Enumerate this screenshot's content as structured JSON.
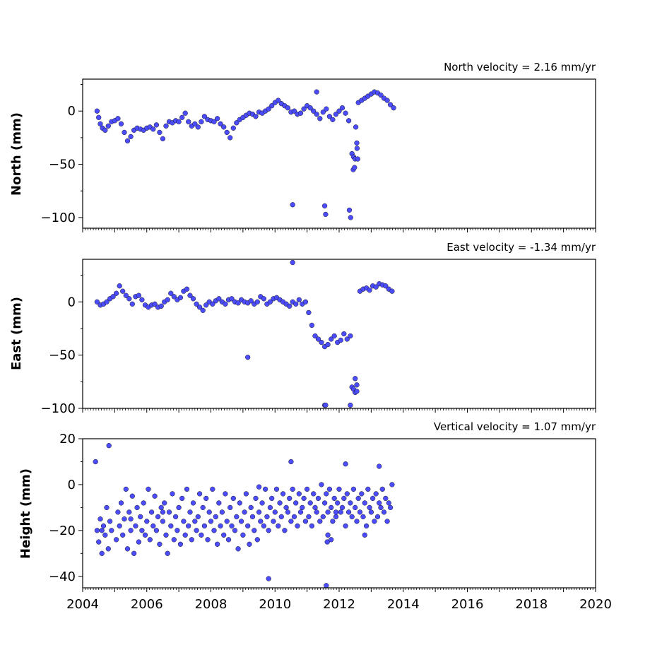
{
  "chart_data": [
    {
      "type": "scatter",
      "title": "North velocity = 2.16 mm/yr",
      "ylabel": "North (mm)",
      "xlim": [
        2004,
        2020
      ],
      "ylim": [
        -110,
        30
      ],
      "yticks": [
        -100,
        -50,
        0
      ],
      "yticklabels": [
        "−100",
        "−50",
        "0"
      ],
      "marker_color": "#4b4bff",
      "marker_edge": "#1a1a1a",
      "grid": false,
      "x": [
        2004.45,
        2004.5,
        2004.55,
        2004.62,
        2004.7,
        2004.8,
        2004.9,
        2005.0,
        2005.1,
        2005.2,
        2005.3,
        2005.4,
        2005.5,
        2005.6,
        2005.7,
        2005.8,
        2005.9,
        2006.0,
        2006.1,
        2006.2,
        2006.3,
        2006.4,
        2006.5,
        2006.6,
        2006.7,
        2006.8,
        2006.9,
        2007.0,
        2007.1,
        2007.2,
        2007.3,
        2007.4,
        2007.5,
        2007.6,
        2007.7,
        2007.8,
        2007.9,
        2008.0,
        2008.1,
        2008.2,
        2008.3,
        2008.4,
        2008.5,
        2008.6,
        2008.7,
        2008.8,
        2008.9,
        2009.0,
        2009.1,
        2009.2,
        2009.3,
        2009.4,
        2009.5,
        2009.6,
        2009.7,
        2009.8,
        2009.9,
        2010.0,
        2010.1,
        2010.2,
        2010.3,
        2010.4,
        2010.5,
        2010.6,
        2010.7,
        2010.8,
        2010.9,
        2011.0,
        2011.1,
        2011.2,
        2011.3,
        2011.4,
        2011.5,
        2011.6,
        2011.7,
        2011.8,
        2011.9,
        2012.0,
        2012.1,
        2012.2,
        2012.3,
        2012.4,
        2012.45,
        2012.5,
        2012.55,
        2012.6,
        2012.7,
        2012.8,
        2012.9,
        2013.0,
        2013.1,
        2013.2,
        2013.3,
        2013.4,
        2013.5,
        2013.6,
        2013.7,
        2010.55,
        2011.55,
        2011.58,
        2012.32,
        2012.36,
        2012.44,
        2012.48,
        2012.52,
        2012.56,
        2011.3,
        2012.58
      ],
      "y": [
        0,
        -6,
        -12,
        -16,
        -18,
        -14,
        -10,
        -9,
        -7,
        -12,
        -20,
        -28,
        -24,
        -18,
        -16,
        -17,
        -18,
        -16,
        -15,
        -17,
        -13,
        -20,
        -26,
        -14,
        -10,
        -11,
        -9,
        -10,
        -6,
        -2,
        -10,
        -14,
        -12,
        -15,
        -10,
        -5,
        -8,
        -9,
        -10,
        -7,
        -12,
        -15,
        -20,
        -25,
        -16,
        -11,
        -8,
        -6,
        -4,
        -2,
        -3,
        -5,
        -1,
        -2,
        0,
        2,
        5,
        8,
        10,
        7,
        5,
        3,
        -1,
        0,
        -3,
        -2,
        2,
        5,
        3,
        0,
        -3,
        -7,
        -1,
        2,
        -5,
        -8,
        -3,
        0,
        3,
        -2,
        -9,
        -40,
        -43,
        -45,
        -30,
        8,
        10,
        12,
        14,
        16,
        18,
        17,
        15,
        12,
        10,
        6,
        3,
        -88,
        -89,
        -97,
        -93,
        -100,
        -55,
        -53,
        -15,
        -35,
        18,
        -45
      ]
    },
    {
      "type": "scatter",
      "title": "East velocity = -1.34 mm/yr",
      "ylabel": "East (mm)",
      "xlim": [
        2004,
        2020
      ],
      "ylim": [
        -100,
        40
      ],
      "yticks": [
        -100,
        -50,
        0
      ],
      "yticklabels": [
        "−100",
        "−50",
        "0"
      ],
      "marker_color": "#4b4bff",
      "marker_edge": "#1a1a1a",
      "grid": false,
      "x": [
        2004.45,
        2004.55,
        2004.65,
        2004.75,
        2004.85,
        2004.95,
        2005.05,
        2005.15,
        2005.25,
        2005.35,
        2005.45,
        2005.55,
        2005.65,
        2005.75,
        2005.85,
        2005.95,
        2006.05,
        2006.15,
        2006.25,
        2006.35,
        2006.45,
        2006.55,
        2006.65,
        2006.75,
        2006.85,
        2006.95,
        2007.05,
        2007.15,
        2007.25,
        2007.35,
        2007.45,
        2007.55,
        2007.65,
        2007.75,
        2007.85,
        2007.95,
        2008.05,
        2008.15,
        2008.25,
        2008.35,
        2008.45,
        2008.55,
        2008.65,
        2008.75,
        2008.85,
        2008.95,
        2009.05,
        2009.15,
        2009.25,
        2009.35,
        2009.45,
        2009.55,
        2009.65,
        2009.75,
        2009.85,
        2009.95,
        2010.05,
        2010.15,
        2010.25,
        2010.35,
        2010.45,
        2010.55,
        2010.65,
        2010.75,
        2010.85,
        2010.95,
        2011.05,
        2011.15,
        2011.25,
        2011.35,
        2011.45,
        2011.55,
        2011.65,
        2011.75,
        2011.85,
        2011.95,
        2012.05,
        2012.15,
        2012.25,
        2012.35,
        2012.4,
        2012.45,
        2012.5,
        2012.55,
        2012.65,
        2012.75,
        2012.85,
        2012.95,
        2013.05,
        2013.15,
        2013.25,
        2013.35,
        2013.45,
        2013.55,
        2013.65,
        2010.55,
        2009.15,
        2011.55,
        2011.58,
        2012.35,
        2012.5,
        2012.55
      ],
      "y": [
        0,
        -3,
        -2,
        0,
        3,
        5,
        8,
        15,
        10,
        6,
        3,
        -2,
        5,
        6,
        2,
        -3,
        -5,
        -3,
        -2,
        -5,
        -4,
        0,
        2,
        8,
        5,
        2,
        4,
        10,
        12,
        6,
        3,
        -2,
        -5,
        -8,
        -3,
        0,
        -2,
        1,
        3,
        0,
        -2,
        2,
        3,
        0,
        -1,
        2,
        0,
        -1,
        1,
        -2,
        0,
        5,
        3,
        -2,
        0,
        3,
        4,
        2,
        0,
        -2,
        -4,
        0,
        -2,
        2,
        -2,
        0,
        -10,
        -22,
        -32,
        -35,
        -38,
        -42,
        -40,
        -35,
        -32,
        -38,
        -36,
        -30,
        -35,
        -32,
        -80,
        -82,
        -85,
        -78,
        10,
        12,
        13,
        11,
        15,
        14,
        17,
        16,
        15,
        12,
        10,
        37,
        -52,
        -97,
        -97,
        -97,
        -72,
        -84
      ]
    },
    {
      "type": "scatter",
      "title": "Vertical velocity = 1.07 mm/yr",
      "ylabel": "Height (mm)",
      "xlim": [
        2004,
        2020
      ],
      "ylim": [
        -45,
        20
      ],
      "yticks": [
        -40,
        -20,
        0,
        20
      ],
      "yticklabels": [
        "−40",
        "−20",
        "0",
        "20"
      ],
      "marker_color": "#4b4bff",
      "marker_edge": "#1a1a1a",
      "grid": false,
      "x": [
        2004.45,
        2004.5,
        2004.55,
        2004.6,
        2004.65,
        2004.7,
        2004.75,
        2004.8,
        2004.85,
        2004.9,
        2005.05,
        2005.1,
        2005.15,
        2005.2,
        2005.25,
        2005.3,
        2005.35,
        2005.4,
        2005.45,
        2005.5,
        2005.55,
        2005.6,
        2005.65,
        2005.7,
        2005.75,
        2005.8,
        2005.85,
        2005.9,
        2005.95,
        2006.0,
        2006.05,
        2006.1,
        2006.15,
        2006.2,
        2006.25,
        2006.3,
        2006.35,
        2006.4,
        2006.45,
        2006.5,
        2006.55,
        2006.6,
        2006.65,
        2006.7,
        2006.75,
        2006.8,
        2006.85,
        2006.9,
        2006.95,
        2007.0,
        2007.05,
        2007.1,
        2007.15,
        2007.2,
        2007.25,
        2007.3,
        2007.35,
        2007.4,
        2007.45,
        2007.5,
        2007.55,
        2007.6,
        2007.65,
        2007.7,
        2007.75,
        2007.8,
        2007.85,
        2007.9,
        2007.95,
        2008.0,
        2008.05,
        2008.1,
        2008.15,
        2008.2,
        2008.25,
        2008.3,
        2008.35,
        2008.4,
        2008.45,
        2008.5,
        2008.55,
        2008.6,
        2008.65,
        2008.7,
        2008.75,
        2008.8,
        2008.85,
        2008.9,
        2008.95,
        2009.0,
        2009.05,
        2009.1,
        2009.15,
        2009.2,
        2009.25,
        2009.3,
        2009.35,
        2009.4,
        2009.45,
        2009.5,
        2009.55,
        2009.6,
        2009.65,
        2009.7,
        2009.75,
        2009.8,
        2009.85,
        2009.9,
        2009.95,
        2010.0,
        2010.05,
        2010.1,
        2010.15,
        2010.2,
        2010.25,
        2010.3,
        2010.35,
        2010.4,
        2010.45,
        2010.5,
        2010.55,
        2010.6,
        2010.65,
        2010.7,
        2010.75,
        2010.8,
        2010.85,
        2010.9,
        2010.95,
        2011.0,
        2011.05,
        2011.1,
        2011.15,
        2011.2,
        2011.25,
        2011.3,
        2011.35,
        2011.4,
        2011.45,
        2011.5,
        2011.55,
        2011.6,
        2011.65,
        2011.7,
        2011.75,
        2011.8,
        2011.85,
        2011.9,
        2011.95,
        2012.0,
        2012.05,
        2012.1,
        2012.15,
        2012.2,
        2012.25,
        2012.3,
        2012.35,
        2012.4,
        2012.45,
        2012.5,
        2012.55,
        2012.6,
        2012.65,
        2012.7,
        2012.75,
        2012.8,
        2012.85,
        2012.9,
        2012.95,
        2013.0,
        2013.05,
        2013.1,
        2013.15,
        2013.2,
        2013.25,
        2013.3,
        2013.35,
        2013.4,
        2013.45,
        2013.5,
        2013.55,
        2013.6,
        2013.65,
        2004.4,
        2004.82,
        2009.8,
        2011.6,
        2011.63,
        2011.65,
        2011.75,
        2011.9,
        2012.2,
        2013.25,
        2009.5,
        2010.5,
        2004.6,
        2005.5,
        2006.5,
        2012.8
      ],
      "y": [
        -20,
        -25,
        -15,
        -30,
        -18,
        -22,
        -10,
        -28,
        -16,
        -20,
        -24,
        -12,
        -18,
        -8,
        -22,
        -15,
        -2,
        -28,
        -12,
        -20,
        -5,
        -30,
        -18,
        -10,
        -25,
        -14,
        -20,
        -8,
        -22,
        -16,
        -2,
        -24,
        -12,
        -18,
        -5,
        -20,
        -14,
        -26,
        -10,
        -16,
        -8,
        -22,
        -30,
        -12,
        -18,
        -4,
        -24,
        -14,
        -20,
        -10,
        -26,
        -6,
        -16,
        -22,
        -2,
        -18,
        -12,
        -24,
        -8,
        -16,
        -20,
        -14,
        -4,
        -22,
        -10,
        -18,
        -6,
        -24,
        -12,
        -16,
        -2,
        -20,
        -14,
        -26,
        -8,
        -18,
        -12,
        -22,
        -4,
        -16,
        -24,
        -10,
        -18,
        -6,
        -20,
        -14,
        -28,
        -8,
        -16,
        -22,
        -12,
        -4,
        -18,
        -26,
        -10,
        -14,
        -20,
        -6,
        -24,
        -12,
        -16,
        -8,
        -18,
        -2,
        -14,
        -20,
        -10,
        -6,
        -16,
        -12,
        -2,
        -18,
        -8,
        -14,
        -4,
        -20,
        -10,
        -12,
        -6,
        -16,
        -2,
        -14,
        -8,
        -18,
        -4,
        -12,
        -10,
        -6,
        -16,
        -2,
        -14,
        -8,
        -18,
        -4,
        -10,
        -12,
        -6,
        -16,
        0,
        -14,
        -8,
        -4,
        -12,
        -2,
        -10,
        -16,
        -6,
        -14,
        -8,
        -2,
        -12,
        -10,
        -6,
        -18,
        -4,
        -12,
        -8,
        -14,
        -2,
        -10,
        -16,
        -6,
        -12,
        -4,
        -14,
        -8,
        -18,
        -2,
        -10,
        -12,
        -6,
        -16,
        -4,
        -14,
        -8,
        -10,
        -2,
        -12,
        -6,
        -16,
        -8,
        -10,
        0,
        10,
        17,
        -41,
        -44,
        -25,
        -22,
        -24,
        -12,
        9,
        8,
        -1,
        10,
        -20,
        -15,
        -12,
        -22
      ]
    }
  ],
  "x_ticklabels": [
    "2004",
    "2006",
    "2008",
    "2010",
    "2012",
    "2014",
    "2016",
    "2018",
    "2020"
  ]
}
